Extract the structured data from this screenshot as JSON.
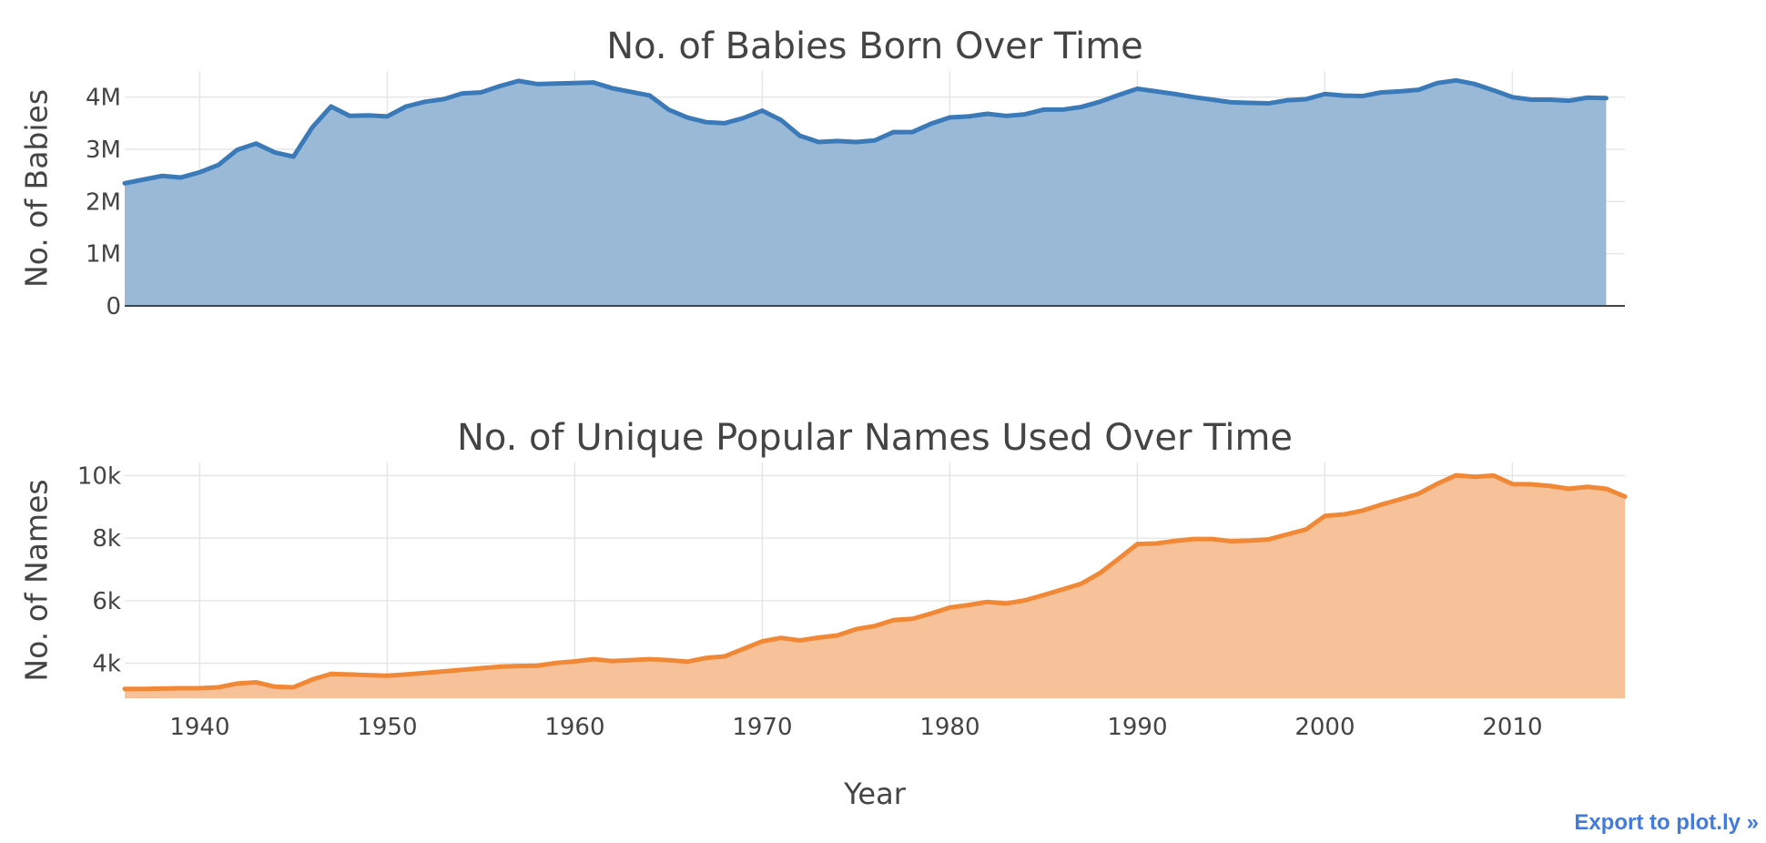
{
  "export_link": "Export to plot.ly »",
  "chart_data": [
    {
      "type": "area",
      "title": "No. of Babies Born Over Time",
      "xlabel": "",
      "ylabel": "No. of Babies",
      "xlim": [
        1936,
        2016
      ],
      "ylim": [
        0,
        4500000
      ],
      "grid": true,
      "yticks": [
        0,
        1000000,
        2000000,
        3000000,
        4000000
      ],
      "ytick_labels": [
        "0",
        "1M",
        "2M",
        "3M",
        "4M"
      ],
      "xticks": [
        1940,
        1950,
        1960,
        1970,
        1980,
        1990,
        2000,
        2010
      ],
      "show_xtick_labels": false,
      "line_color": "#3a7ab8",
      "fill_color": "#9ab9d6",
      "series": [
        {
          "x": [
            1936,
            1937,
            1938,
            1939,
            1940,
            1941,
            1942,
            1943,
            1944,
            1945,
            1946,
            1947,
            1948,
            1949,
            1950,
            1951,
            1952,
            1953,
            1954,
            1955,
            1956,
            1957,
            1958,
            1959,
            1960,
            1961,
            1962,
            1963,
            1964,
            1965,
            1966,
            1967,
            1968,
            1969,
            1970,
            1971,
            1972,
            1973,
            1974,
            1975,
            1976,
            1977,
            1978,
            1979,
            1980,
            1981,
            1982,
            1983,
            1984,
            1985,
            1986,
            1987,
            1988,
            1989,
            1990,
            1991,
            1992,
            1993,
            1994,
            1995,
            1996,
            1997,
            1998,
            1999,
            2000,
            2001,
            2002,
            2003,
            2004,
            2005,
            2006,
            2007,
            2008,
            2009,
            2010,
            2011,
            2012,
            2013,
            2014,
            2015
          ],
          "values": [
            2350000,
            2420000,
            2490000,
            2460000,
            2560000,
            2700000,
            2990000,
            3110000,
            2940000,
            2860000,
            3420000,
            3820000,
            3640000,
            3650000,
            3630000,
            3820000,
            3910000,
            3960000,
            4070000,
            4090000,
            4210000,
            4310000,
            4250000,
            4260000,
            4270000,
            4280000,
            4170000,
            4100000,
            4030000,
            3760000,
            3610000,
            3520000,
            3500000,
            3600000,
            3740000,
            3560000,
            3260000,
            3140000,
            3160000,
            3140000,
            3170000,
            3330000,
            3330000,
            3490000,
            3610000,
            3630000,
            3680000,
            3640000,
            3670000,
            3760000,
            3760000,
            3810000,
            3910000,
            4040000,
            4160000,
            4110000,
            4060000,
            4000000,
            3950000,
            3900000,
            3890000,
            3880000,
            3940000,
            3960000,
            4060000,
            4030000,
            4020000,
            4090000,
            4110000,
            4140000,
            4270000,
            4320000,
            4250000,
            4130000,
            4000000,
            3950000,
            3950000,
            3930000,
            3990000,
            3980000
          ]
        }
      ]
    },
    {
      "type": "area",
      "title": "No. of Unique Popular Names Used Over Time",
      "xlabel": "Year",
      "ylabel": "No. of Names",
      "xlim": [
        1936,
        2016
      ],
      "ylim": [
        2880,
        10420
      ],
      "grid": true,
      "yticks": [
        4000,
        6000,
        8000,
        10000
      ],
      "ytick_labels": [
        "4k",
        "6k",
        "8k",
        "10k"
      ],
      "xticks": [
        1940,
        1950,
        1960,
        1970,
        1980,
        1990,
        2000,
        2010
      ],
      "xtick_labels": [
        "1940",
        "1950",
        "1960",
        "1970",
        "1980",
        "1990",
        "2000",
        "2010"
      ],
      "show_xtick_labels": true,
      "line_color": "#f08836",
      "fill_color": "#f7c29a",
      "series": [
        {
          "x": [
            1936,
            1937,
            1938,
            1939,
            1940,
            1941,
            1942,
            1943,
            1944,
            1945,
            1946,
            1947,
            1948,
            1949,
            1950,
            1951,
            1952,
            1953,
            1954,
            1955,
            1956,
            1957,
            1958,
            1959,
            1960,
            1961,
            1962,
            1963,
            1964,
            1965,
            1966,
            1967,
            1968,
            1969,
            1970,
            1971,
            1972,
            1973,
            1974,
            1975,
            1976,
            1977,
            1978,
            1979,
            1980,
            1981,
            1982,
            1983,
            1984,
            1985,
            1986,
            1987,
            1988,
            1989,
            1990,
            1991,
            1992,
            1993,
            1994,
            1995,
            1996,
            1997,
            1998,
            1999,
            2000,
            2001,
            2002,
            2003,
            2004,
            2005,
            2006,
            2007,
            2008,
            2009,
            2010,
            2011,
            2012,
            2013,
            2014,
            2015,
            2016
          ],
          "values": [
            3180,
            3180,
            3190,
            3200,
            3200,
            3230,
            3350,
            3390,
            3250,
            3230,
            3480,
            3660,
            3640,
            3620,
            3600,
            3640,
            3690,
            3740,
            3790,
            3840,
            3890,
            3910,
            3920,
            4010,
            4060,
            4130,
            4070,
            4100,
            4130,
            4100,
            4050,
            4170,
            4220,
            4460,
            4700,
            4810,
            4730,
            4820,
            4890,
            5090,
            5190,
            5380,
            5420,
            5590,
            5780,
            5860,
            5960,
            5910,
            6010,
            6180,
            6360,
            6540,
            6880,
            7340,
            7810,
            7830,
            7910,
            7970,
            7970,
            7900,
            7920,
            7960,
            8120,
            8280,
            8710,
            8760,
            8880,
            9070,
            9240,
            9420,
            9740,
            10010,
            9960,
            10000,
            9730,
            9720,
            9670,
            9580,
            9640,
            9580,
            9330
          ]
        }
      ]
    }
  ]
}
